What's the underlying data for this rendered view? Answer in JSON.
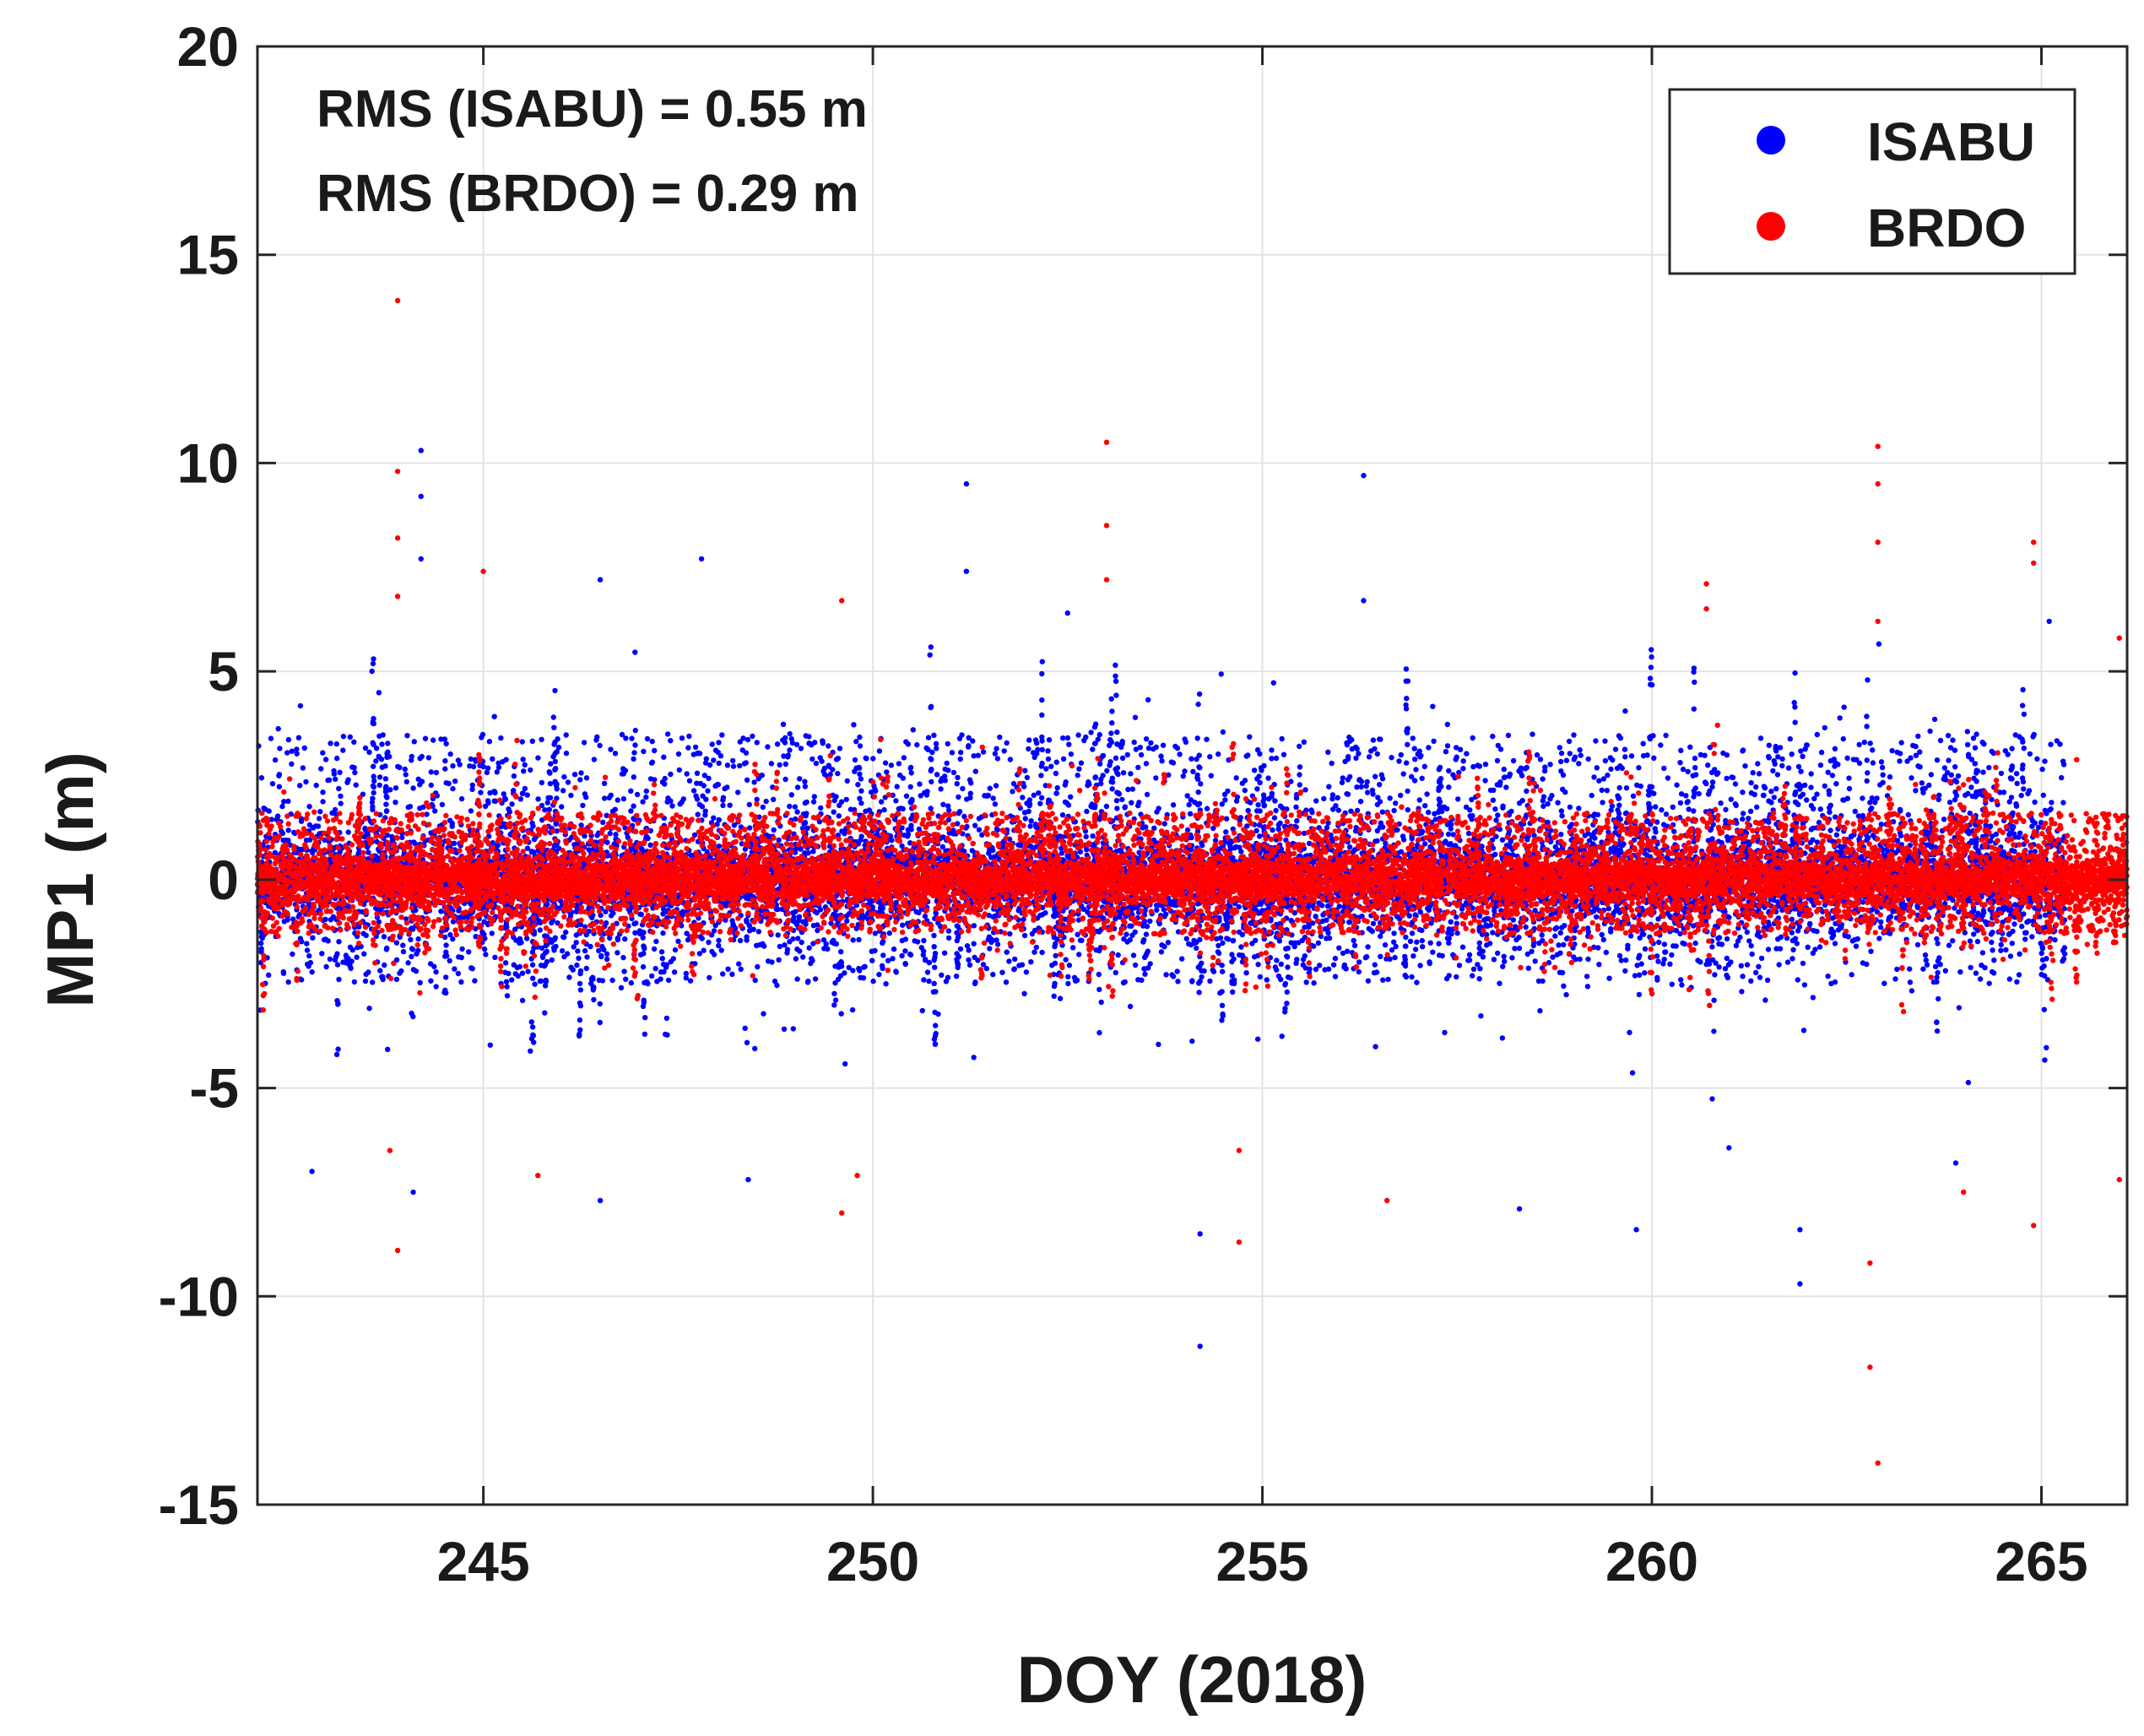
{
  "chart_data": {
    "type": "scatter",
    "title": "",
    "xlabel": "DOY (2018)",
    "ylabel": "MP1 (m)",
    "xlim": [
      242.1,
      266.1
    ],
    "ylim": [
      -15,
      20
    ],
    "xticks": [
      245,
      250,
      255,
      260,
      265
    ],
    "yticks": [
      -15,
      -10,
      -5,
      0,
      5,
      10,
      15,
      20
    ],
    "grid": true,
    "legend_position": "top-right",
    "annotations": [
      "RMS (ISABU) = 0.55 m",
      "RMS (BRDO) = 0.29 m"
    ],
    "series": [
      {
        "name": "ISABU",
        "color": "#0000ff",
        "rms": 0.55,
        "day_range": [
          242.1,
          265.3
        ],
        "core_band": [
          -2.5,
          3.5
        ],
        "outliers": [
          {
            "x": 244.2,
            "y": 10.3
          },
          {
            "x": 244.2,
            "y": 9.2
          },
          {
            "x": 244.2,
            "y": 7.7
          },
          {
            "x": 246.5,
            "y": 7.2
          },
          {
            "x": 247.8,
            "y": 7.7
          },
          {
            "x": 251.2,
            "y": 9.5
          },
          {
            "x": 251.2,
            "y": 7.4
          },
          {
            "x": 252.5,
            "y": 6.4
          },
          {
            "x": 256.3,
            "y": 9.7
          },
          {
            "x": 256.3,
            "y": 6.7
          },
          {
            "x": 265.1,
            "y": 6.2
          },
          {
            "x": 242.8,
            "y": -7.0
          },
          {
            "x": 244.1,
            "y": -7.5
          },
          {
            "x": 246.5,
            "y": -7.7
          },
          {
            "x": 248.4,
            "y": -7.2
          },
          {
            "x": 254.2,
            "y": -8.5
          },
          {
            "x": 254.2,
            "y": -11.2
          },
          {
            "x": 258.3,
            "y": -7.9
          },
          {
            "x": 259.8,
            "y": -8.4
          },
          {
            "x": 261.9,
            "y": -9.7
          },
          {
            "x": 261.9,
            "y": -8.4
          },
          {
            "x": 263.9,
            "y": -6.8
          }
        ]
      },
      {
        "name": "BRDO",
        "color": "#ff0000",
        "rms": 0.29,
        "day_range": [
          242.1,
          266.1
        ],
        "core_band": [
          -1.3,
          1.6
        ],
        "outliers": [
          {
            "x": 243.9,
            "y": 13.9
          },
          {
            "x": 243.9,
            "y": 9.8
          },
          {
            "x": 243.9,
            "y": 8.2
          },
          {
            "x": 243.9,
            "y": 6.8
          },
          {
            "x": 243.9,
            "y": -8.9
          },
          {
            "x": 243.8,
            "y": -6.5
          },
          {
            "x": 245.0,
            "y": 7.4
          },
          {
            "x": 249.6,
            "y": 6.7
          },
          {
            "x": 249.6,
            "y": -8.0
          },
          {
            "x": 249.8,
            "y": -7.1
          },
          {
            "x": 253.0,
            "y": 10.5
          },
          {
            "x": 253.0,
            "y": 8.5
          },
          {
            "x": 253.0,
            "y": 7.2
          },
          {
            "x": 254.7,
            "y": -8.7
          },
          {
            "x": 254.7,
            "y": -6.5
          },
          {
            "x": 256.6,
            "y": -7.7
          },
          {
            "x": 260.7,
            "y": 7.1
          },
          {
            "x": 260.7,
            "y": 6.5
          },
          {
            "x": 262.9,
            "y": 10.4
          },
          {
            "x": 262.9,
            "y": 9.5
          },
          {
            "x": 262.9,
            "y": 8.1
          },
          {
            "x": 262.9,
            "y": 6.2
          },
          {
            "x": 262.8,
            "y": -9.2
          },
          {
            "x": 262.8,
            "y": -11.7
          },
          {
            "x": 262.9,
            "y": -14.0
          },
          {
            "x": 264.0,
            "y": -7.5
          },
          {
            "x": 264.9,
            "y": 8.1
          },
          {
            "x": 264.9,
            "y": 7.6
          },
          {
            "x": 264.9,
            "y": -8.3
          },
          {
            "x": 266.0,
            "y": 5.8
          },
          {
            "x": 266.0,
            "y": -7.2
          },
          {
            "x": 245.7,
            "y": -7.1
          }
        ]
      }
    ]
  }
}
